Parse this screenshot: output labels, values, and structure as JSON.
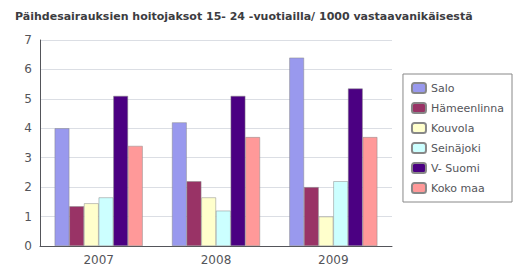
{
  "chart_data": {
    "type": "bar",
    "title": "Päihdesairauksien hoitojaksot 15- 24 -vuotiailla/ 1000 vastaavanikäisestä",
    "categories": [
      "2007",
      "2008",
      "2009"
    ],
    "series": [
      {
        "name": "Salo",
        "color": "#9999EE",
        "values": [
          4.0,
          4.2,
          6.4
        ]
      },
      {
        "name": "Hämeenlinna",
        "color": "#993366",
        "values": [
          1.35,
          2.2,
          2.0
        ]
      },
      {
        "name": "Kouvola",
        "color": "#FFFFCC",
        "values": [
          1.45,
          1.65,
          1.0
        ]
      },
      {
        "name": "Seinäjoki",
        "color": "#CCFFFF",
        "values": [
          1.65,
          1.2,
          2.2
        ]
      },
      {
        "name": "V- Suomi",
        "color": "#4B0082",
        "values": [
          5.1,
          5.1,
          5.35
        ]
      },
      {
        "name": "Koko maa",
        "color": "#FF9999",
        "values": [
          3.4,
          3.7,
          3.7
        ]
      }
    ],
    "ylim": [
      0,
      7
    ],
    "yticks": [
      0,
      1,
      2,
      3,
      4,
      5,
      6,
      7
    ],
    "grid": true,
    "legend": "right"
  }
}
